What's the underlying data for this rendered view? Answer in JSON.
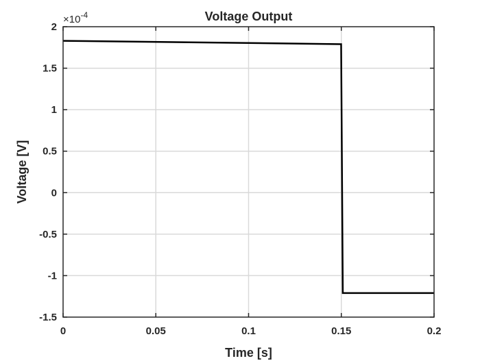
{
  "chart_data": {
    "type": "line",
    "title": "Voltage Output",
    "xlabel": "Time [s]",
    "ylabel": "Voltage [V]",
    "y_multiplier_label": "×10",
    "y_multiplier_exponent": "-4",
    "xlim": [
      0,
      0.2
    ],
    "ylim": [
      -1.5,
      2
    ],
    "xticks": [
      0,
      0.05,
      0.1,
      0.15,
      0.2
    ],
    "xtick_labels": [
      "0",
      "0.05",
      "0.1",
      "0.15",
      "0.2"
    ],
    "yticks": [
      -1.5,
      -1,
      -0.5,
      0,
      0.5,
      1,
      1.5,
      2
    ],
    "ytick_labels": [
      "-1.5",
      "-1",
      "-0.5",
      "0",
      "0.5",
      "1",
      "1.5",
      "2"
    ],
    "grid": true,
    "series": [
      {
        "x": [
          0,
          0.1499,
          0.1508,
          0.2
        ],
        "y": [
          1.83,
          1.79,
          -1.21,
          -1.21
        ]
      }
    ],
    "colors": {
      "line": "#000000",
      "grid": "#d9d9d9",
      "axes": "#262626",
      "background": "#ffffff"
    }
  }
}
